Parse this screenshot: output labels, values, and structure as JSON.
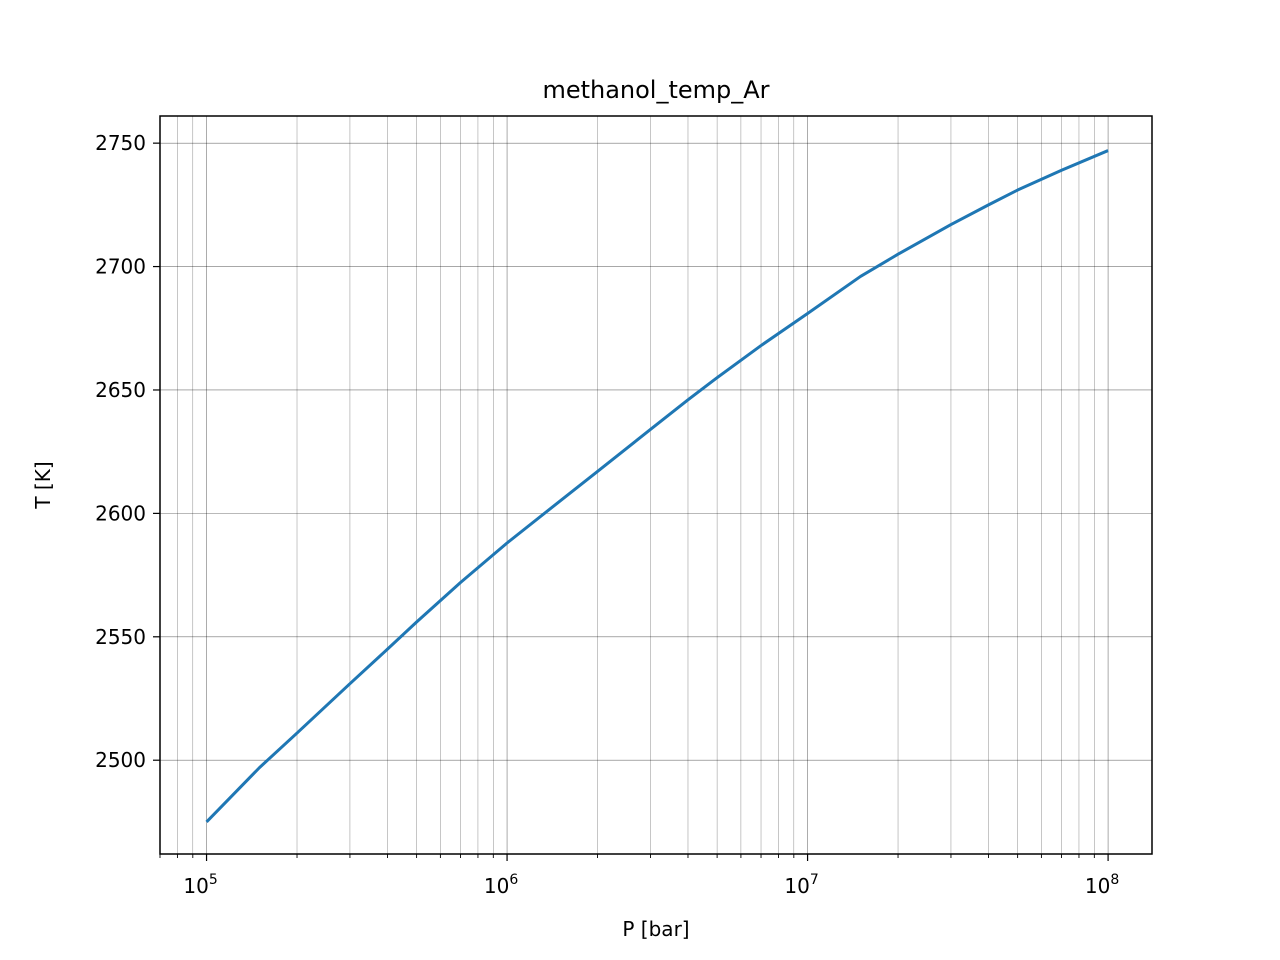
{
  "chart_data": {
    "type": "line",
    "title": "methanol_temp_Ar",
    "xlabel": "P [bar]",
    "ylabel": "T [K]",
    "xscale": "log",
    "xlim": [
      70000,
      140000000
    ],
    "ylim": [
      2462,
      2761
    ],
    "x_major_ticks": [
      {
        "value": 100000,
        "base": "10",
        "exp": "5"
      },
      {
        "value": 1000000,
        "base": "10",
        "exp": "6"
      },
      {
        "value": 10000000,
        "base": "10",
        "exp": "7"
      },
      {
        "value": 100000000,
        "base": "10",
        "exp": "8"
      }
    ],
    "y_ticks": [
      {
        "value": 2500,
        "label": "2500"
      },
      {
        "value": 2550,
        "label": "2550"
      },
      {
        "value": 2600,
        "label": "2600"
      },
      {
        "value": 2650,
        "label": "2650"
      },
      {
        "value": 2700,
        "label": "2700"
      },
      {
        "value": 2750,
        "label": "2750"
      }
    ],
    "grid": "major and minor",
    "series": [
      {
        "color": "#1f77b4",
        "x": [
          100000,
          150000,
          200000,
          300000,
          400000,
          500000,
          700000,
          1000000,
          1500000,
          2000000,
          3000000,
          4000000,
          5000000,
          7000000,
          10000000,
          15000000,
          20000000,
          30000000,
          40000000,
          50000000,
          70000000,
          100000000
        ],
        "y": [
          2475,
          2497,
          2511,
          2531,
          2545,
          2556,
          2572,
          2588,
          2605,
          2617,
          2634,
          2646,
          2655,
          2668,
          2681,
          2696,
          2705,
          2717,
          2725,
          2731,
          2739,
          2747
        ]
      }
    ]
  }
}
